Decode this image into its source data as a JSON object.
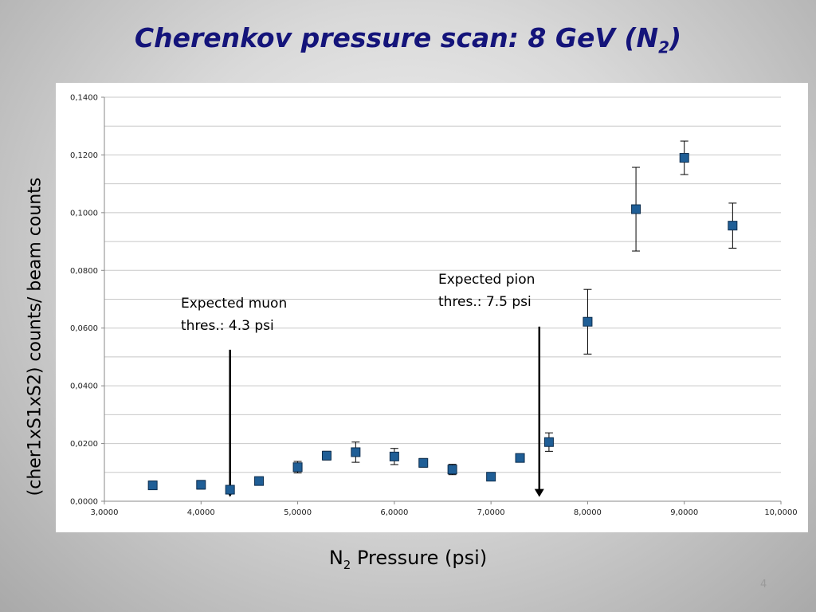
{
  "slide": {
    "title_main": "Cherenkov pressure scan: 8 GeV (N",
    "title_sub": "2",
    "title_end": ")",
    "page_number": "4"
  },
  "axis_titles": {
    "y": "(cher1xS1xS2) counts/ beam counts",
    "x_main": "N",
    "x_sub": "2",
    "x_end": " Pressure (psi)"
  },
  "annotations": {
    "muon_line1": "Expected muon",
    "muon_line2": "thres.: 4.3 psi",
    "pion_line1": "Expected pion",
    "pion_line2": "thres.: 7.5 psi"
  },
  "chart_data": {
    "type": "scatter",
    "xlim": [
      3.0,
      10.0
    ],
    "ylim": [
      0.0,
      0.14
    ],
    "x_ticks": [
      3,
      4,
      5,
      6,
      7,
      8,
      9,
      10
    ],
    "x_tick_labels": [
      "3,0000",
      "4,0000",
      "5,0000",
      "6,0000",
      "7,0000",
      "8,0000",
      "9,0000",
      "10,0000"
    ],
    "y_ticks": [
      0,
      0.02,
      0.04,
      0.06,
      0.08,
      0.1,
      0.12,
      0.14
    ],
    "y_tick_labels": [
      "0,0000",
      "0,0200",
      "0,0400",
      "0,0600",
      "0,0800",
      "0,1000",
      "0,1200",
      "0,1400"
    ],
    "grid": true,
    "marker_color": "#1f5e96",
    "points": [
      {
        "x": 3.5,
        "y": 0.0055,
        "err": 0.0015
      },
      {
        "x": 4.0,
        "y": 0.0057,
        "err": 0.0015
      },
      {
        "x": 4.3,
        "y": 0.004,
        "err": 0.0012
      },
      {
        "x": 4.6,
        "y": 0.007,
        "err": 0.0012
      },
      {
        "x": 5.0,
        "y": 0.0118,
        "err": 0.002
      },
      {
        "x": 5.3,
        "y": 0.0158,
        "err": 0.0015
      },
      {
        "x": 5.6,
        "y": 0.017,
        "err": 0.0035
      },
      {
        "x": 6.0,
        "y": 0.0155,
        "err": 0.0028
      },
      {
        "x": 6.3,
        "y": 0.0133,
        "err": 0.0015
      },
      {
        "x": 6.6,
        "y": 0.011,
        "err": 0.0018
      },
      {
        "x": 7.0,
        "y": 0.0085,
        "err": 0.0012
      },
      {
        "x": 7.3,
        "y": 0.015,
        "err": 0.0012
      },
      {
        "x": 7.6,
        "y": 0.0205,
        "err": 0.0032
      },
      {
        "x": 8.0,
        "y": 0.0622,
        "err": 0.0112
      },
      {
        "x": 8.5,
        "y": 0.1012,
        "err": 0.0145
      },
      {
        "x": 9.0,
        "y": 0.119,
        "err": 0.0058
      },
      {
        "x": 9.5,
        "y": 0.0955,
        "err": 0.0078
      }
    ],
    "threshold_arrows": [
      {
        "x": 4.3,
        "y_from": 0.0525,
        "y_to": 0.0015
      },
      {
        "x": 7.5,
        "y_from": 0.0605,
        "y_to": 0.0015
      }
    ]
  }
}
